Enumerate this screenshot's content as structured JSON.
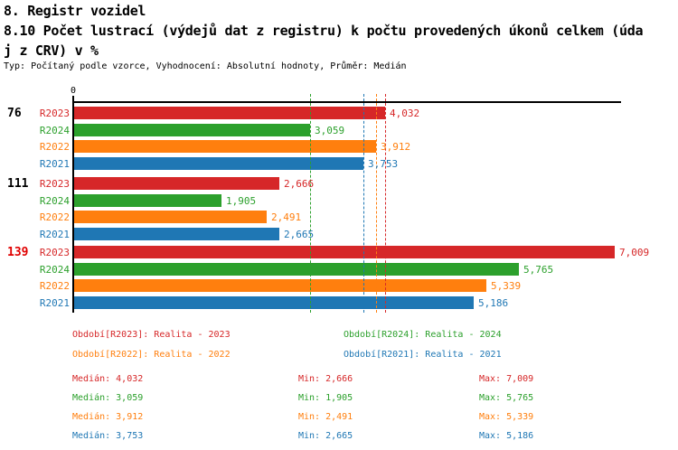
{
  "header": {
    "line1": "8. Registr vozidel",
    "line2": "8.10 Počet lustrací (výdejů dat z registru) k počtu provedených úkonů celkem (úda",
    "line3": "j z CRV) v %",
    "meta": "Typ: Počítaný podle vzorce, Vyhodnocení: Absolutní hodnoty, Průměr: Medián"
  },
  "colors": {
    "R2023": "#d62728",
    "R2024": "#2ca02c",
    "R2022": "#ff7f0e",
    "R2021": "#1f77b4",
    "alert": "#e00000",
    "text": "#000000",
    "axis": "#000000"
  },
  "chart_data": {
    "type": "bar",
    "orientation": "horizontal",
    "x_axis": {
      "origin_label": "0",
      "position": "top",
      "xlim": [
        0,
        7090
      ]
    },
    "series_order": [
      "R2023",
      "R2024",
      "R2022",
      "R2021"
    ],
    "series_colors": {
      "R2023": "#d62728",
      "R2024": "#2ca02c",
      "R2022": "#ff7f0e",
      "R2021": "#1f77b4"
    },
    "groups": [
      {
        "label": "76",
        "alert": false,
        "bars": [
          {
            "series": "R2023",
            "value": 4032,
            "display": "4,032"
          },
          {
            "series": "R2024",
            "value": 3059,
            "display": "3,059"
          },
          {
            "series": "R2022",
            "value": 3912,
            "display": "3,912"
          },
          {
            "series": "R2021",
            "value": 3753,
            "display": "3,753"
          }
        ]
      },
      {
        "label": "111",
        "alert": false,
        "bars": [
          {
            "series": "R2023",
            "value": 2666,
            "display": "2,666"
          },
          {
            "series": "R2024",
            "value": 1905,
            "display": "1,905"
          },
          {
            "series": "R2022",
            "value": 2491,
            "display": "2,491"
          },
          {
            "series": "R2021",
            "value": 2665,
            "display": "2,665"
          }
        ]
      },
      {
        "label": "139",
        "alert": true,
        "bars": [
          {
            "series": "R2023",
            "value": 7009,
            "display": "7,009"
          },
          {
            "series": "R2024",
            "value": 5765,
            "display": "5,765"
          },
          {
            "series": "R2022",
            "value": 5339,
            "display": "5,339"
          },
          {
            "series": "R2021",
            "value": 5186,
            "display": "5,186"
          }
        ]
      }
    ],
    "median_lines": [
      {
        "series": "R2023",
        "value": 4032
      },
      {
        "series": "R2024",
        "value": 3059
      },
      {
        "series": "R2022",
        "value": 3912
      },
      {
        "series": "R2021",
        "value": 3753
      }
    ]
  },
  "legend": {
    "items": [
      {
        "series": "R2023",
        "text": "Období[R2023]: Realita - 2023"
      },
      {
        "series": "R2024",
        "text": "Období[R2024]: Realita - 2024"
      },
      {
        "series": "R2022",
        "text": "Období[R2022]: Realita - 2022"
      },
      {
        "series": "R2021",
        "text": "Období[R2021]: Realita - 2021"
      }
    ]
  },
  "stats": {
    "rows": [
      {
        "series": "R2023",
        "median": "Medián: 4,032",
        "min": "Min: 2,666",
        "max": "Max: 7,009"
      },
      {
        "series": "R2024",
        "median": "Medián: 3,059",
        "min": "Min: 1,905",
        "max": "Max: 5,765"
      },
      {
        "series": "R2022",
        "median": "Medián: 3,912",
        "min": "Min: 2,491",
        "max": "Max: 5,339"
      },
      {
        "series": "R2021",
        "median": "Medián: 3,753",
        "min": "Min: 2,665",
        "max": "Max: 5,186"
      }
    ]
  }
}
